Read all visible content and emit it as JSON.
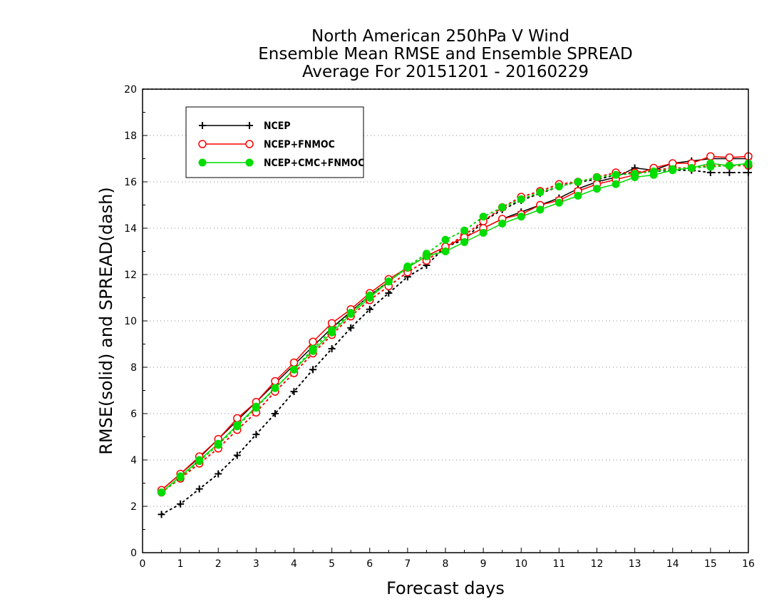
{
  "chart_data": {
    "type": "line",
    "title": [
      "North American 250hPa V Wind",
      "Ensemble Mean RMSE and Ensemble SPREAD",
      "Average For 20151201 - 20160229"
    ],
    "xlabel": "Forecast days",
    "ylabel": "RMSE(solid) and SPREAD(dash)",
    "xlim": [
      0,
      16
    ],
    "ylim": [
      0,
      20
    ],
    "x_ticks": [
      0,
      1,
      2,
      3,
      4,
      5,
      6,
      7,
      8,
      9,
      10,
      11,
      12,
      13,
      14,
      15,
      16
    ],
    "y_ticks": [
      0,
      2,
      4,
      6,
      8,
      10,
      12,
      14,
      16,
      18,
      20
    ],
    "grid": "horizontal dotted",
    "legend_position": "top-left",
    "x": [
      0.5,
      1,
      1.5,
      2,
      2.5,
      3,
      3.5,
      4,
      4.5,
      5,
      5.5,
      6,
      6.5,
      7,
      7.5,
      8,
      8.5,
      9,
      9.5,
      10,
      10.5,
      11,
      11.5,
      12,
      12.5,
      13,
      13.5,
      14,
      14.5,
      15,
      15.5,
      16
    ],
    "series": [
      {
        "name": "NCEP",
        "color": "#000000",
        "marker": "plus",
        "rmse": [
          2.7,
          3.4,
          4.1,
          4.9,
          5.7,
          6.5,
          7.3,
          8.1,
          8.9,
          9.7,
          10.4,
          11.1,
          11.7,
          12.3,
          12.8,
          13.2,
          13.6,
          14.0,
          14.4,
          14.7,
          15.0,
          15.3,
          15.7,
          16.0,
          16.2,
          16.6,
          16.5,
          16.8,
          16.9,
          17.0,
          17.0,
          17.0
        ],
        "spread": [
          1.65,
          2.1,
          2.75,
          3.4,
          4.2,
          5.1,
          6.0,
          6.95,
          7.9,
          8.8,
          9.7,
          10.5,
          11.2,
          11.9,
          12.4,
          13.2,
          13.5,
          14.3,
          14.8,
          15.2,
          15.5,
          15.8,
          16.0,
          16.1,
          16.3,
          16.4,
          16.45,
          16.5,
          16.5,
          16.4,
          16.4,
          16.4
        ]
      },
      {
        "name": "NCEP+FNMOC",
        "color": "#ff0000",
        "marker": "open-circle",
        "rmse": [
          2.7,
          3.4,
          4.15,
          4.9,
          5.8,
          6.5,
          7.4,
          8.2,
          9.1,
          9.9,
          10.5,
          11.2,
          11.8,
          12.3,
          12.8,
          13.2,
          13.6,
          14.0,
          14.4,
          14.6,
          15.0,
          15.2,
          15.6,
          15.9,
          16.1,
          16.3,
          16.6,
          16.8,
          16.8,
          17.1,
          17.05,
          17.1
        ],
        "spread": [
          2.6,
          3.2,
          3.85,
          4.5,
          5.3,
          6.05,
          6.95,
          7.75,
          8.6,
          9.4,
          10.2,
          10.9,
          11.5,
          12.1,
          12.6,
          13.2,
          13.7,
          14.3,
          14.9,
          15.35,
          15.6,
          15.9,
          16.0,
          16.2,
          16.4,
          16.4,
          16.5,
          16.6,
          16.6,
          16.7,
          16.7,
          16.7
        ]
      },
      {
        "name": "NCEP+CMC+FNMOC",
        "color": "#00dd00",
        "marker": "filled-circle",
        "rmse": [
          2.6,
          3.3,
          4.0,
          4.7,
          5.5,
          6.3,
          7.1,
          7.9,
          8.7,
          9.5,
          10.3,
          11.0,
          11.7,
          12.3,
          12.8,
          13.0,
          13.4,
          13.8,
          14.2,
          14.5,
          14.8,
          15.1,
          15.4,
          15.7,
          15.9,
          16.2,
          16.3,
          16.5,
          16.6,
          16.8,
          16.7,
          16.8
        ],
        "spread": [
          2.6,
          3.25,
          3.95,
          4.65,
          5.45,
          6.25,
          7.1,
          7.9,
          8.8,
          9.6,
          10.35,
          11.1,
          11.7,
          12.35,
          12.9,
          13.5,
          13.9,
          14.5,
          14.9,
          15.25,
          15.55,
          15.8,
          16.0,
          16.2,
          16.3,
          16.35,
          16.45,
          16.55,
          16.6,
          16.65,
          16.7,
          16.75
        ]
      }
    ]
  }
}
